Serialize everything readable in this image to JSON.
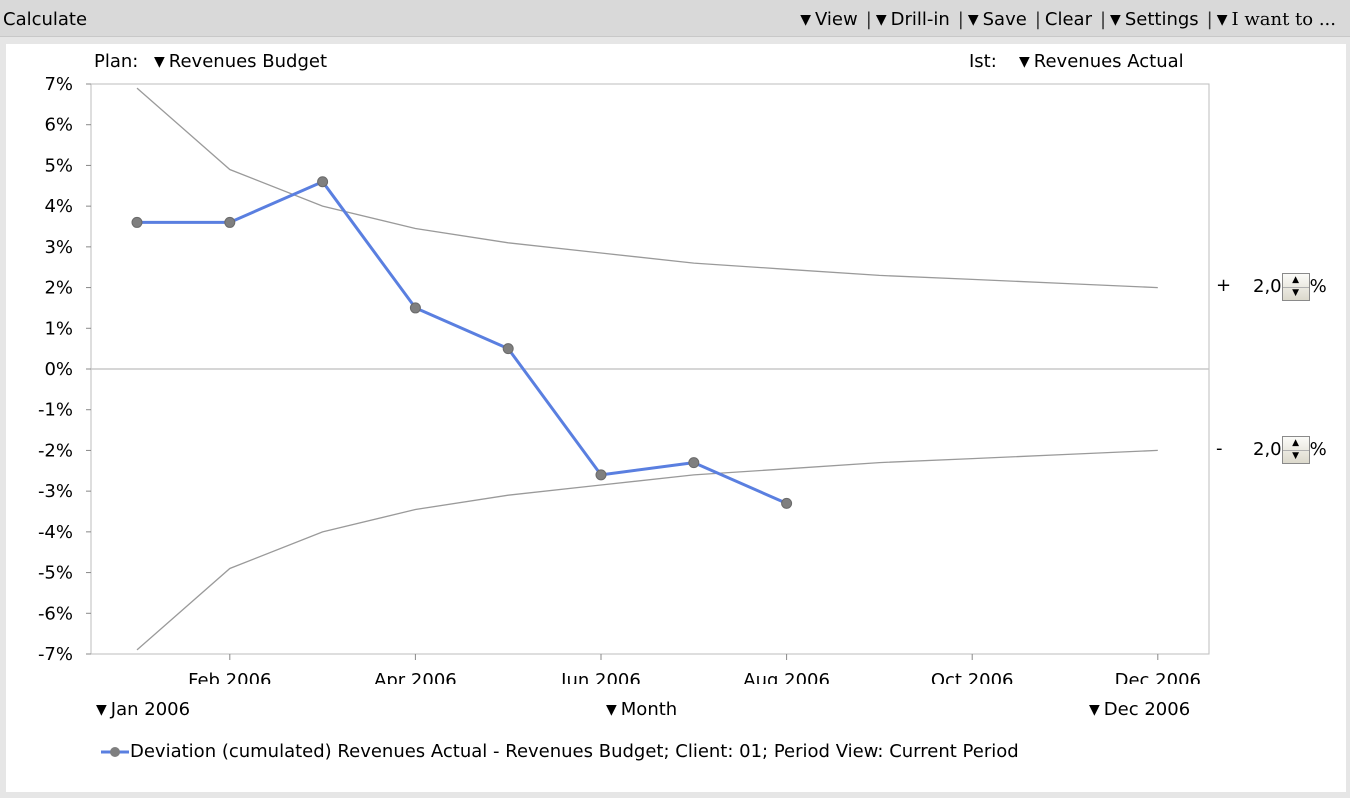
{
  "app": {
    "title": "Calculate"
  },
  "toolbar": {
    "view": "View",
    "drill": "Drill-in",
    "save": "Save",
    "clear": "Clear",
    "settings": "Settings",
    "iwant": "I want to ..."
  },
  "selectors": {
    "plan_label": "Plan:",
    "plan_value": "Revenues Budget",
    "ist_label": "Ist:",
    "ist_value": "Revenues Actual",
    "start": "Jan 2006",
    "granularity": "Month",
    "end": "Dec 2006"
  },
  "tolerance": {
    "upper_sign": "+",
    "upper_value": "2,0",
    "lower_sign": "-",
    "lower_value": "2,0",
    "unit": "%"
  },
  "colors": {
    "series": "#5a7fe0",
    "marker": "#7f7f7f",
    "band": "#9a9a9a",
    "axis": "#bdbdbd",
    "zero_line": "#c8c8c8"
  },
  "chart_data": {
    "type": "line",
    "ylim": [
      -7,
      7
    ],
    "y_ticks": [
      "7%",
      "6%",
      "5%",
      "4%",
      "3%",
      "2%",
      "1%",
      "0%",
      "-1%",
      "-2%",
      "-3%",
      "-4%",
      "-5%",
      "-6%",
      "-7%"
    ],
    "x_ticks": [
      "Feb 2006",
      "Apr 2006",
      "Jun 2006",
      "Aug 2006",
      "Oct 2006",
      "Dec 2006"
    ],
    "legend": "Deviation (cumulated) Revenues Actual - Revenues Budget; Client: 01; Period View: Current Period",
    "months": [
      "Jan 2006",
      "Feb 2006",
      "Mar 2006",
      "Apr 2006",
      "May 2006",
      "Jun 2006",
      "Jul 2006",
      "Aug 2006",
      "Sep 2006",
      "Oct 2006",
      "Nov 2006",
      "Dec 2006"
    ],
    "series": [
      {
        "values": [
          3.6,
          3.6,
          4.6,
          1.5,
          0.5,
          -2.6,
          -2.3,
          -3.3
        ]
      }
    ],
    "tolerance_band_upper": [
      6.9,
      4.9,
      4.0,
      3.45,
      3.1,
      2.85,
      2.6,
      2.45,
      2.3,
      2.2,
      2.1,
      2.0
    ],
    "tolerance_band_lower": [
      -6.9,
      -4.9,
      -4.0,
      -3.45,
      -3.1,
      -2.85,
      -2.6,
      -2.45,
      -2.3,
      -2.2,
      -2.1,
      -2.0
    ]
  }
}
